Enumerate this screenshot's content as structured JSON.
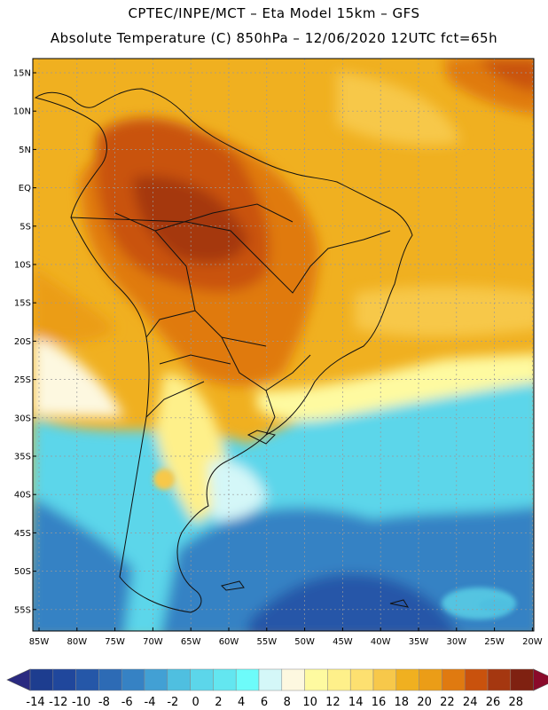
{
  "title_line1": "CPTEC/INPE/MCT –  Eta Model 15km – GFS",
  "title_line2": "Absolute Temperature (C) 850hPa – 12/06/2020 12UTC fct=65h",
  "lat_labels": [
    "15N",
    "10N",
    "5N",
    "EQ",
    "5S",
    "10S",
    "15S",
    "20S",
    "25S",
    "30S",
    "35S",
    "40S",
    "45S",
    "50S",
    "55S"
  ],
  "lon_labels": [
    "85W",
    "80W",
    "75W",
    "70W",
    "65W",
    "60W",
    "55W",
    "50W",
    "45W",
    "40W",
    "35W",
    "30W",
    "25W",
    "20W"
  ],
  "colorbar": {
    "labels": [
      "-14",
      "-12",
      "-10",
      "-8",
      "-6",
      "-4",
      "-2",
      "0",
      "2",
      "4",
      "6",
      "8",
      "10",
      "12",
      "14",
      "16",
      "18",
      "20",
      "22",
      "24",
      "26",
      "28"
    ],
    "colors": [
      "#1d3d8f",
      "#20479c",
      "#2557a8",
      "#2d6bb5",
      "#3682c4",
      "#42a0d4",
      "#4fbfe0",
      "#5cd6ea",
      "#63e6f0",
      "#6dfbfa",
      "#d4f7f8",
      "#fdf8e0",
      "#fefaa0",
      "#fef08a",
      "#fde070",
      "#f7c84a",
      "#f0b020",
      "#eb9d17",
      "#e07a10",
      "#c9520d",
      "#a53710",
      "#7f2111"
    ],
    "end_left_color": "#2a2a80",
    "end_right_color": "#8a0a2a"
  }
}
